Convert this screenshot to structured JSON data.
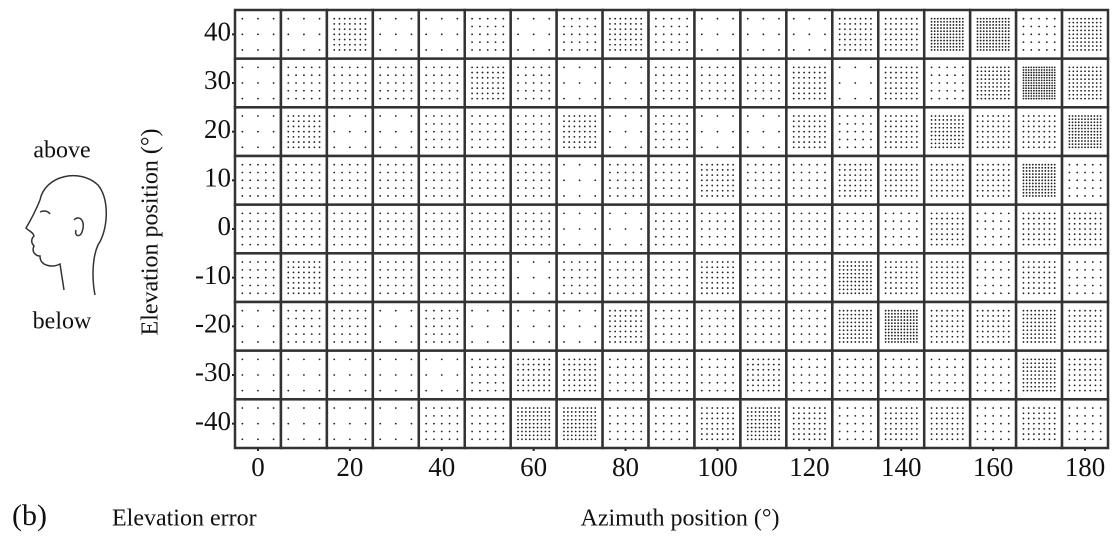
{
  "chart_data": {
    "type": "dot-density-grid",
    "y_label": "Elevation position (°)",
    "x_label": "Azimuth position (°)",
    "panel_label": "(b)",
    "caption": "Elevation error",
    "head_labels": {
      "top": "above",
      "bottom": "below"
    },
    "x": [
      0,
      10,
      20,
      30,
      40,
      50,
      60,
      70,
      80,
      90,
      100,
      110,
      120,
      130,
      140,
      150,
      160,
      170,
      180
    ],
    "y": [
      40,
      30,
      20,
      10,
      0,
      -10,
      -20,
      -30,
      -40
    ],
    "xlim": [
      -5,
      185
    ],
    "ylim": [
      -45,
      45
    ],
    "xticks": [
      0,
      20,
      40,
      60,
      80,
      100,
      120,
      140,
      160,
      180
    ],
    "yticks": [
      -40,
      -30,
      -20,
      -10,
      0,
      10,
      20,
      30,
      40
    ],
    "color": "#222",
    "values": [
      [
        1,
        1,
        3,
        1,
        1,
        2,
        1,
        2,
        3,
        2,
        1,
        1,
        1,
        3,
        3,
        5,
        5,
        2,
        4
      ],
      [
        1,
        2,
        2,
        2,
        2,
        3,
        2,
        1,
        1,
        2,
        2,
        2,
        3,
        1,
        3,
        2,
        4,
        6,
        4
      ],
      [
        1,
        3,
        1,
        1,
        2,
        2,
        2,
        3,
        1,
        2,
        1,
        1,
        3,
        2,
        3,
        4,
        3,
        3,
        5
      ],
      [
        2,
        2,
        2,
        2,
        2,
        2,
        2,
        1,
        2,
        2,
        3,
        2,
        2,
        3,
        3,
        3,
        3,
        5,
        2
      ],
      [
        2,
        2,
        2,
        2,
        2,
        2,
        2,
        1,
        1,
        2,
        2,
        2,
        2,
        2,
        2,
        3,
        2,
        3,
        3
      ],
      [
        2,
        3,
        2,
        2,
        2,
        2,
        1,
        2,
        2,
        2,
        3,
        2,
        2,
        4,
        3,
        3,
        2,
        3,
        2
      ],
      [
        1,
        2,
        2,
        1,
        2,
        1,
        1,
        1,
        3,
        2,
        2,
        2,
        2,
        4,
        5,
        3,
        3,
        4,
        3
      ],
      [
        1,
        1,
        1,
        1,
        1,
        2,
        3,
        3,
        2,
        2,
        2,
        3,
        2,
        2,
        2,
        2,
        2,
        4,
        3
      ],
      [
        1,
        1,
        1,
        1,
        2,
        2,
        4,
        4,
        2,
        2,
        3,
        4,
        3,
        2,
        3,
        3,
        2,
        3,
        2
      ]
    ]
  }
}
